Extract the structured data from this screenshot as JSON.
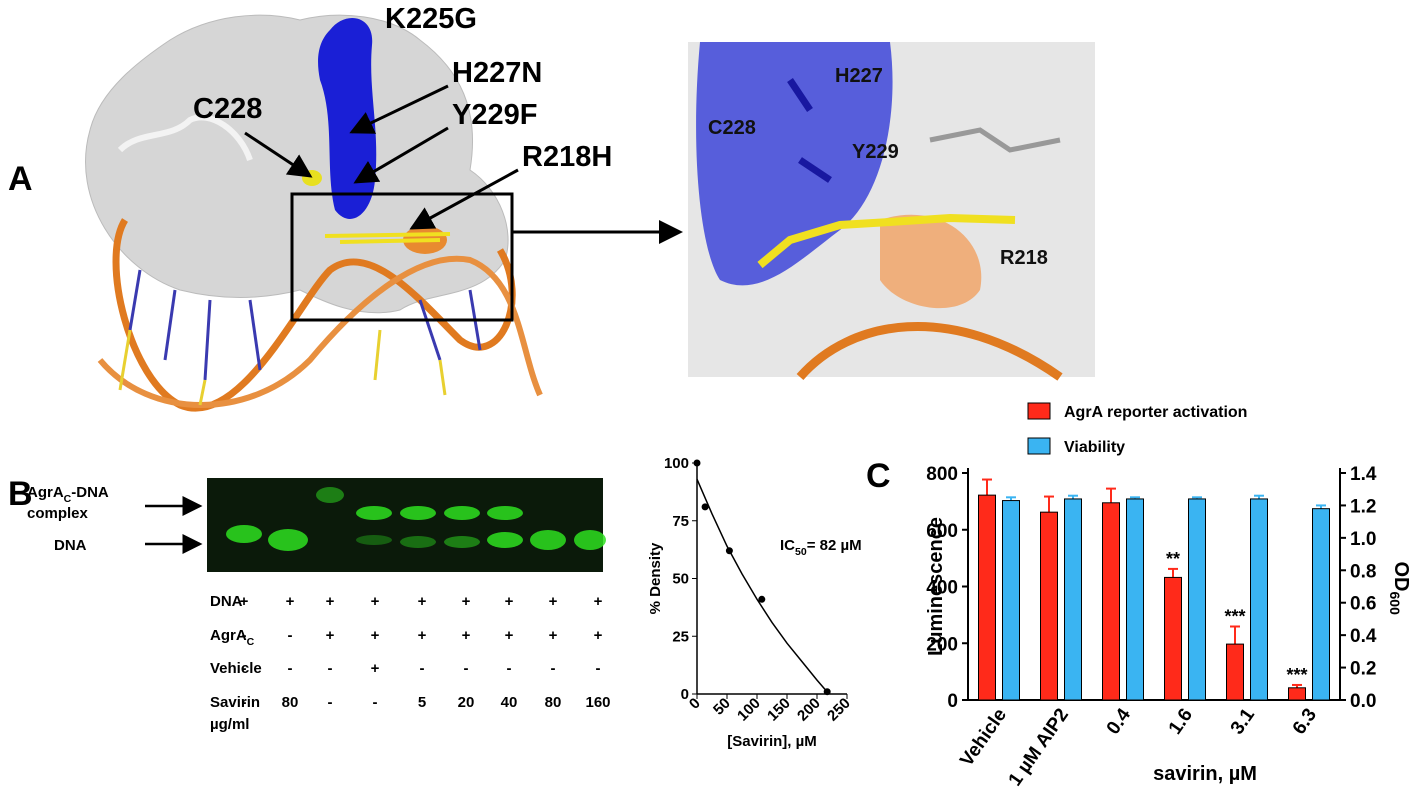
{
  "panel_labels": {
    "a": "A",
    "b": "B",
    "c": "C"
  },
  "structure": {
    "overview_labels": [
      "K225G",
      "H227N",
      "Y229F",
      "R218H",
      "C228"
    ],
    "zoom_labels": [
      "H227",
      "C228",
      "Y229",
      "R218"
    ]
  },
  "gel": {
    "band_labels": {
      "complex": [
        "AgrA",
        "C",
        "-DNA"
      ],
      "complex_line2": "complex",
      "dna": "DNA"
    },
    "rows": [
      {
        "label": [
          "DNA"
        ],
        "cells": [
          "+",
          "+",
          "+",
          "+",
          "+",
          "+",
          "+",
          "+",
          "+"
        ]
      },
      {
        "label": [
          "AgrA",
          "C"
        ],
        "cells": [
          "-",
          "-",
          "+",
          "+",
          "+",
          "+",
          "+",
          "+",
          "+"
        ]
      },
      {
        "label": [
          "Vehicle"
        ],
        "cells": [
          "-",
          "-",
          "-",
          "+",
          "-",
          "-",
          "-",
          "-",
          "-"
        ]
      },
      {
        "label": [
          "Savirin"
        ],
        "label_line2": "µg/ml",
        "cells": [
          "-",
          "80",
          "-",
          "-",
          "5",
          "20",
          "40",
          "80",
          "160"
        ]
      }
    ]
  },
  "chart_data": [
    {
      "type": "scatter",
      "x": [
        0,
        13.5,
        54,
        108,
        217
      ],
      "values": [
        100,
        81,
        62,
        41,
        1
      ],
      "color": "#000000",
      "fit": {
        "x": [
          0,
          25,
          50,
          75,
          100,
          125,
          150,
          175,
          200,
          220
        ],
        "values": [
          93,
          78,
          64,
          52,
          41,
          31,
          22,
          14,
          6,
          0
        ]
      },
      "xlim": [
        0,
        250
      ],
      "xticks": [
        0,
        50,
        100,
        150,
        200,
        250
      ],
      "ylim": [
        0,
        100
      ],
      "yticks": [
        0,
        25,
        50,
        75,
        100
      ],
      "xlabel": "[Savirin], µM",
      "ylabel": "% Density",
      "annotation": [
        "IC",
        "50",
        "= 82 µM"
      ]
    },
    {
      "type": "bar",
      "categories": [
        "Vehicle",
        "1 µM AIP2",
        "0.4",
        "1.6",
        "3.1",
        "6.3"
      ],
      "series": [
        {
          "name": "AgrA reporter activation",
          "color": "#ff2a1a",
          "values": [
            722,
            662,
            695,
            432,
            197,
            43
          ],
          "errors": [
            55,
            55,
            50,
            30,
            62,
            10
          ]
        },
        {
          "name": "Viability",
          "color": "#3ab4f2",
          "axis": "y2",
          "values": [
            1.23,
            1.24,
            1.24,
            1.24,
            1.24,
            1.18
          ],
          "errors": [
            0.02,
            0.02,
            0.01,
            0.01,
            0.02,
            0.02
          ]
        }
      ],
      "ylim": [
        0,
        800
      ],
      "yticks": [
        0,
        200,
        400,
        600,
        800
      ],
      "y2lim": [
        0,
        1.4
      ],
      "y2ticks": [
        {
          "value": 0,
          "label": "0.0"
        },
        0.2,
        0.4,
        0.6,
        0.8,
        {
          "value": 1,
          "label": "1.0"
        },
        1.2,
        1.4
      ],
      "ylabel": "Luminescence",
      "y2label": [
        "OD",
        "600"
      ],
      "xlabel": "savirin, µM",
      "significance": [
        null,
        null,
        null,
        "**",
        "***",
        "***"
      ]
    }
  ]
}
